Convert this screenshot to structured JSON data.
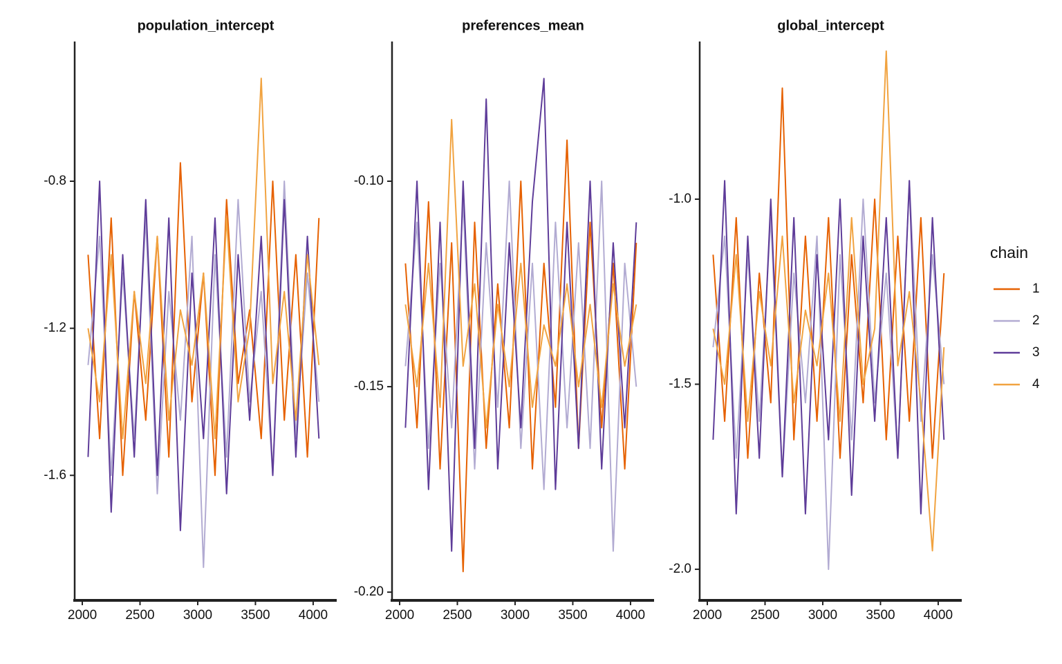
{
  "chart_data": [
    {
      "type": "line",
      "title": "population_intercept",
      "legend_title": "chain",
      "legend": "right",
      "grid": false,
      "x": [
        2050,
        2150,
        2250,
        2350,
        2450,
        2550,
        2650,
        2750,
        2850,
        2950,
        3050,
        3150,
        3250,
        3350,
        3450,
        3550,
        3650,
        3750,
        3850,
        3950,
        4050
      ],
      "xlim": [
        1934,
        4204
      ],
      "xticks": [
        2000,
        2500,
        3000,
        3500,
        4000
      ],
      "ylim": [
        -1.94,
        -0.42
      ],
      "yticks": [
        -0.8,
        -1.2,
        -1.6
      ],
      "series": [
        {
          "name": "1",
          "color": "#e66101",
          "values": [
            -1.0,
            -1.5,
            -0.9,
            -1.6,
            -1.1,
            -1.45,
            -0.95,
            -1.55,
            -0.75,
            -1.4,
            -1.05,
            -1.6,
            -0.85,
            -1.35,
            -1.15,
            -1.5,
            -0.8,
            -1.45,
            -1.0,
            -1.55,
            -0.9
          ]
        },
        {
          "name": "2",
          "color": "#b2abd2",
          "values": [
            -1.3,
            -0.95,
            -1.6,
            -1.05,
            -1.5,
            -0.9,
            -1.65,
            -1.1,
            -1.45,
            -0.95,
            -1.85,
            -1.0,
            -1.55,
            -0.85,
            -1.4,
            -1.1,
            -1.6,
            -0.8,
            -1.5,
            -1.05,
            -1.4
          ]
        },
        {
          "name": "3",
          "color": "#5e3c99",
          "values": [
            -1.55,
            -0.8,
            -1.7,
            -1.0,
            -1.55,
            -0.85,
            -1.6,
            -0.9,
            -1.75,
            -1.05,
            -1.5,
            -0.9,
            -1.65,
            -1.0,
            -1.45,
            -0.95,
            -1.6,
            -0.85,
            -1.55,
            -0.95,
            -1.5
          ]
        },
        {
          "name": "4",
          "color": "#f1a340",
          "values": [
            -1.2,
            -1.4,
            -1.0,
            -1.5,
            -1.1,
            -1.35,
            -0.95,
            -1.45,
            -1.15,
            -1.3,
            -1.05,
            -1.5,
            -0.9,
            -1.4,
            -1.2,
            -0.52,
            -1.35,
            -1.1,
            -1.45,
            -1.0,
            -1.3
          ]
        }
      ]
    },
    {
      "type": "line",
      "title": "preferences_mean",
      "grid": false,
      "x": [
        2050,
        2150,
        2250,
        2350,
        2450,
        2550,
        2650,
        2750,
        2850,
        2950,
        3050,
        3150,
        3250,
        3350,
        3450,
        3550,
        3650,
        3750,
        3850,
        3950,
        4050
      ],
      "xlim": [
        1934,
        4204
      ],
      "xticks": [
        2000,
        2500,
        3000,
        3500,
        4000
      ],
      "ylim": [
        -0.202,
        -0.066
      ],
      "yticks": [
        {
          "value": -0.1,
          "label": "-0.10"
        },
        -0.15,
        {
          "value": -0.2,
          "label": "-0.20"
        }
      ],
      "series": [
        {
          "name": "1",
          "color": "#e66101",
          "values": [
            -0.12,
            -0.16,
            -0.105,
            -0.17,
            -0.115,
            -0.195,
            -0.11,
            -0.165,
            -0.125,
            -0.16,
            -0.1,
            -0.17,
            -0.12,
            -0.155,
            -0.09,
            -0.165,
            -0.11,
            -0.16,
            -0.12,
            -0.17,
            -0.115
          ]
        },
        {
          "name": "2",
          "color": "#b2abd2",
          "values": [
            -0.145,
            -0.11,
            -0.165,
            -0.12,
            -0.16,
            -0.105,
            -0.17,
            -0.115,
            -0.155,
            -0.1,
            -0.165,
            -0.12,
            -0.175,
            -0.11,
            -0.16,
            -0.115,
            -0.165,
            -0.1,
            -0.19,
            -0.12,
            -0.15
          ]
        },
        {
          "name": "3",
          "color": "#5e3c99",
          "values": [
            -0.16,
            -0.1,
            -0.175,
            -0.11,
            -0.19,
            -0.1,
            -0.165,
            -0.08,
            -0.17,
            -0.115,
            -0.16,
            -0.105,
            -0.075,
            -0.175,
            -0.11,
            -0.165,
            -0.1,
            -0.17,
            -0.115,
            -0.16,
            -0.11
          ]
        },
        {
          "name": "4",
          "color": "#f1a340",
          "values": [
            -0.13,
            -0.15,
            -0.12,
            -0.155,
            -0.085,
            -0.145,
            -0.125,
            -0.16,
            -0.13,
            -0.15,
            -0.12,
            -0.155,
            -0.135,
            -0.145,
            -0.125,
            -0.15,
            -0.13,
            -0.155,
            -0.125,
            -0.145,
            -0.13
          ]
        }
      ]
    },
    {
      "type": "line",
      "title": "global_intercept",
      "grid": false,
      "x": [
        2050,
        2150,
        2250,
        2350,
        2450,
        2550,
        2650,
        2750,
        2850,
        2950,
        3050,
        3150,
        3250,
        3350,
        3450,
        3550,
        3650,
        3750,
        3850,
        3950,
        4050
      ],
      "xlim": [
        1934,
        4204
      ],
      "xticks": [
        2000,
        2500,
        3000,
        3500,
        4000
      ],
      "ylim": [
        -2.084,
        -0.574
      ],
      "yticks": [
        {
          "value": -1.0,
          "label": "-1.0"
        },
        -1.5,
        {
          "value": -2.0,
          "label": "-2.0"
        }
      ],
      "series": [
        {
          "name": "1",
          "color": "#e66101",
          "values": [
            -1.15,
            -1.6,
            -1.05,
            -1.7,
            -1.2,
            -1.55,
            -0.7,
            -1.65,
            -1.1,
            -1.6,
            -1.05,
            -1.7,
            -1.15,
            -1.55,
            -1.0,
            -1.65,
            -1.1,
            -1.6,
            -1.05,
            -1.7,
            -1.2
          ]
        },
        {
          "name": "2",
          "color": "#b2abd2",
          "values": [
            -1.4,
            -1.1,
            -1.7,
            -1.15,
            -1.6,
            -1.05,
            -1.75,
            -1.2,
            -1.55,
            -1.1,
            -2.0,
            -1.15,
            -1.65,
            -1.0,
            -1.55,
            -1.2,
            -1.7,
            -0.95,
            -1.6,
            -1.15,
            -1.5
          ]
        },
        {
          "name": "3",
          "color": "#5e3c99",
          "values": [
            -1.65,
            -0.95,
            -1.85,
            -1.1,
            -1.7,
            -1.0,
            -1.75,
            -1.05,
            -1.85,
            -1.15,
            -1.65,
            -1.0,
            -1.8,
            -1.1,
            -1.6,
            -1.05,
            -1.7,
            -0.95,
            -1.85,
            -1.05,
            -1.65
          ]
        },
        {
          "name": "4",
          "color": "#f1a340",
          "values": [
            -1.35,
            -1.5,
            -1.15,
            -1.6,
            -1.25,
            -1.45,
            -1.1,
            -1.55,
            -1.3,
            -1.45,
            -1.2,
            -1.6,
            -1.05,
            -1.5,
            -1.35,
            -0.6,
            -1.45,
            -1.25,
            -1.55,
            -1.95,
            -1.4
          ]
        }
      ]
    }
  ]
}
